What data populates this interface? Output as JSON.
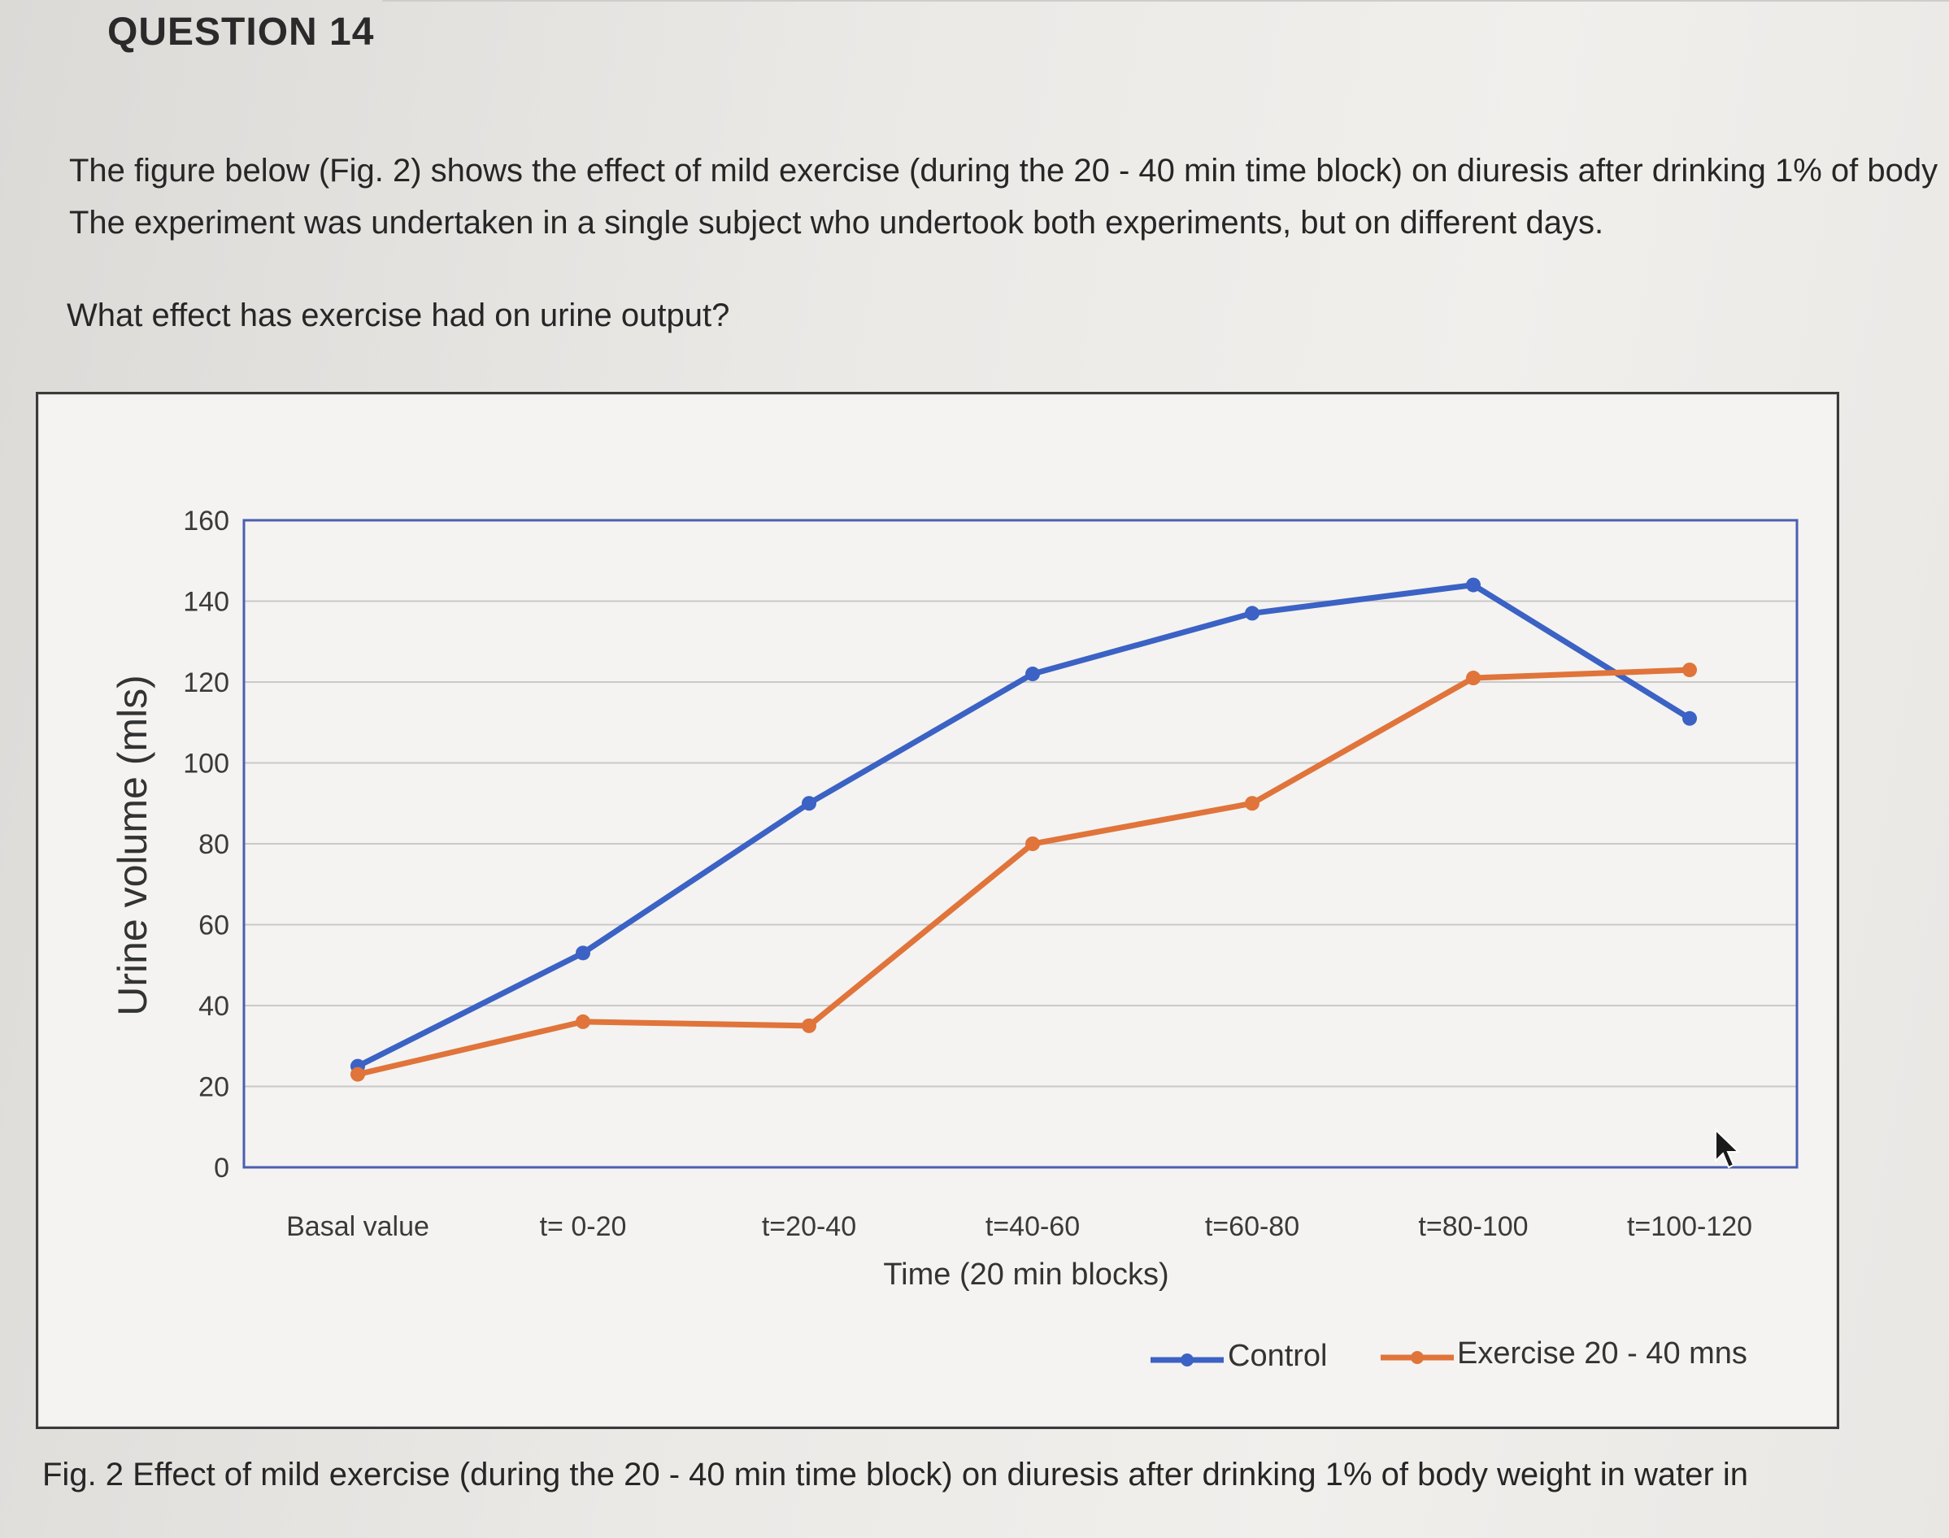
{
  "question": {
    "title": "QUESTION 14",
    "body_line1": "The figure below (Fig. 2) shows the effect of mild exercise (during the 20 - 40 min time block) on diuresis after drinking 1% of body",
    "body_line2": "The experiment was undertaken in a single subject who undertook both experiments, but on different days.",
    "prompt": "What effect has exercise had on urine output?"
  },
  "caption": "Fig. 2 Effect of mild exercise (during the 20 - 40 min time block) on diuresis after drinking 1% of body weight in water in",
  "colors": {
    "control": "#3b62c4",
    "exercise": "#e0743a",
    "gridline": "#c9c9c9",
    "plot_border": "#4a5fb0"
  },
  "cursor_icon": "mouse-pointer-icon",
  "chart_data": {
    "type": "line",
    "xlabel": "Time (20 min blocks)",
    "ylabel": "Urine volume (mls)",
    "categories": [
      "Basal value",
      "t= 0-20",
      "t=20-40",
      "t=40-60",
      "t=60-80",
      "t=80-100",
      "t=100-120"
    ],
    "ylim": [
      0,
      160
    ],
    "yticks": [
      0,
      20,
      40,
      60,
      80,
      100,
      120,
      140,
      160
    ],
    "grid": true,
    "legend_position": "bottom",
    "series": [
      {
        "name": "Control",
        "values": [
          25,
          53,
          90,
          122,
          137,
          144,
          111
        ]
      },
      {
        "name": "Exercise 20 - 40 mns",
        "values": [
          23,
          36,
          35,
          80,
          90,
          121,
          123
        ]
      }
    ]
  }
}
